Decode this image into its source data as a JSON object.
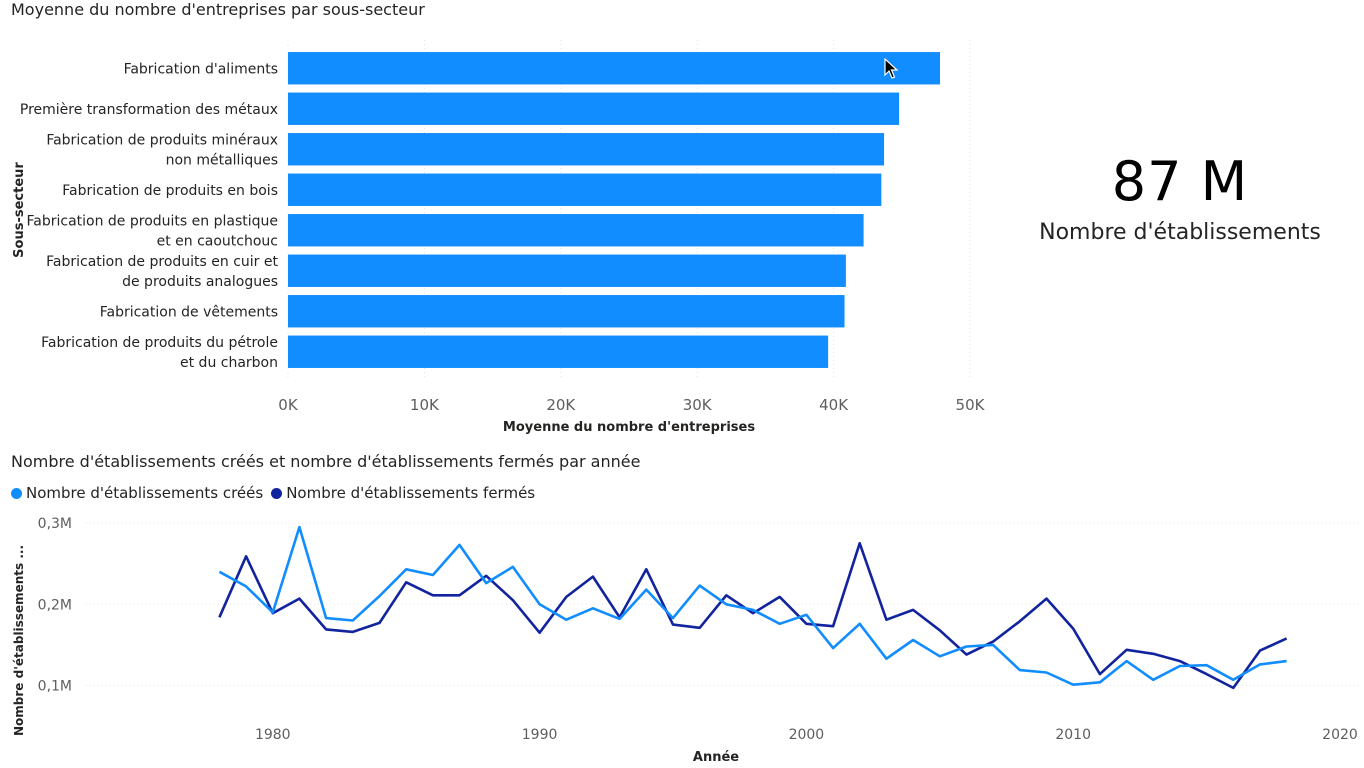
{
  "bar_chart": {
    "title": "Moyenne du nombre d'entreprises par sous-secteur",
    "ylabel": "Sous-secteur",
    "xlabel": "Moyenne du nombre d'entreprises",
    "bar_color": "#118DFF"
  },
  "kpi": {
    "value": "87 M",
    "label": "Nombre d'établissements"
  },
  "line_chart": {
    "title": "Nombre d'établissements créés et nombre d'établissements fermés par année",
    "ylabel": "Nombre d'établissements ...",
    "xlabel": "Année"
  },
  "chart_data": [
    {
      "type": "bar",
      "orientation": "horizontal",
      "title": "Moyenne du nombre d'entreprises par sous-secteur",
      "xlabel": "Moyenne du nombre d'entreprises",
      "ylabel": "Sous-secteur",
      "categories": [
        [
          "Fabrication d'aliments"
        ],
        [
          "Première transformation des métaux"
        ],
        [
          "Fabrication de produits minéraux",
          "non métalliques"
        ],
        [
          "Fabrication de produits en bois"
        ],
        [
          "Fabrication de produits en plastique",
          "et en caoutchouc"
        ],
        [
          "Fabrication de produits en cuir et",
          "de produits analogues"
        ],
        [
          "Fabrication de vêtements"
        ],
        [
          "Fabrication de produits du pétrole",
          "et du charbon"
        ]
      ],
      "values": [
        47800,
        44800,
        43700,
        43500,
        42200,
        40900,
        40800,
        39600
      ],
      "xlim": [
        0,
        50000
      ],
      "xticks": [
        0,
        10000,
        20000,
        30000,
        40000,
        50000
      ],
      "xtick_labels": [
        "0K",
        "10K",
        "20K",
        "30K",
        "40K",
        "50K"
      ],
      "grid": true,
      "color": "#118DFF"
    },
    {
      "type": "line",
      "title": "Nombre d'établissements créés et nombre d'établissements fermés par année",
      "xlabel": "Année",
      "ylabel": "Nombre d'établissements ...",
      "legend_position": "top-left",
      "xlim": [
        1973,
        2020
      ],
      "ylim": [
        0.06,
        0.3
      ],
      "xticks": [
        1980,
        1990,
        2000,
        2010,
        2020
      ],
      "xtick_labels": [
        "1980",
        "1990",
        "2000",
        "2010",
        "2020"
      ],
      "yticks": [
        0.1,
        0.2,
        0.3
      ],
      "ytick_labels": [
        "0,1M",
        "0,2M",
        "0,3M"
      ],
      "grid": true,
      "x": [
        1978,
        1979,
        1980,
        1981,
        1982,
        1983,
        1984,
        1985,
        1986,
        1987,
        1988,
        1989,
        1990,
        1991,
        1992,
        1993,
        1994,
        1995,
        1996,
        1997,
        1998,
        1999,
        2000,
        2001,
        2002,
        2003,
        2004,
        2005,
        2006,
        2007,
        2008,
        2009,
        2010,
        2011,
        2012,
        2013,
        2014,
        2015,
        2016,
        2017,
        2018
      ],
      "series": [
        {
          "name": "Nombre d'établissements créés",
          "color": "#118DFF",
          "values": [
            0.24,
            0.222,
            0.19,
            0.295,
            0.183,
            0.18,
            0.21,
            0.243,
            0.236,
            0.273,
            0.226,
            0.246,
            0.2,
            0.181,
            0.195,
            0.182,
            0.218,
            0.183,
            0.223,
            0.2,
            0.193,
            0.176,
            0.187,
            0.146,
            0.176,
            0.133,
            0.156,
            0.136,
            0.148,
            0.15,
            0.119,
            0.116,
            0.101,
            0.104,
            0.13,
            0.107,
            0.124,
            0.125,
            0.107,
            0.126,
            0.13
          ]
        },
        {
          "name": "Nombre d'établissements fermés",
          "color": "#12239E",
          "values": [
            0.184,
            0.259,
            0.189,
            0.207,
            0.169,
            0.166,
            0.177,
            0.227,
            0.211,
            0.211,
            0.235,
            0.205,
            0.165,
            0.209,
            0.234,
            0.184,
            0.243,
            0.175,
            0.171,
            0.211,
            0.189,
            0.209,
            0.176,
            0.173,
            0.275,
            0.181,
            0.193,
            0.168,
            0.138,
            0.154,
            0.179,
            0.207,
            0.17,
            0.114,
            0.144,
            0.139,
            0.13,
            0.114,
            0.097,
            0.143,
            0.158
          ]
        }
      ]
    }
  ]
}
